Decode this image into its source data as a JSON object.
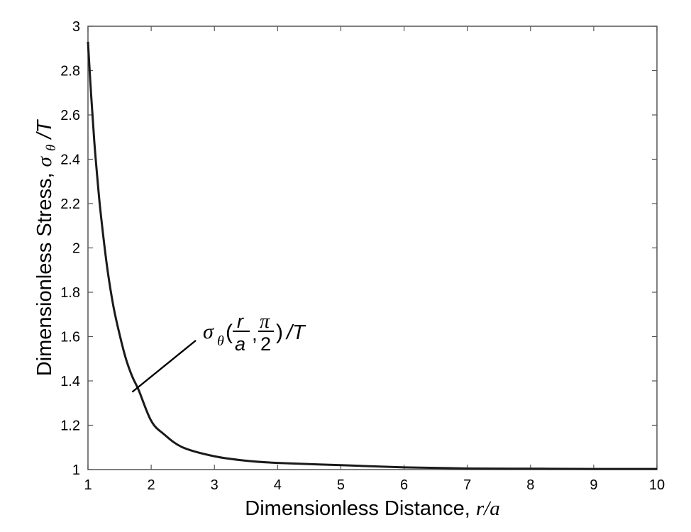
{
  "chart_data": {
    "type": "line",
    "xlabel": "Dimensionless Distance,",
    "xlabel_var": "r/a",
    "ylabel": "Dimensionless Stress,",
    "ylabel_sym": "σ",
    "ylabel_sub": "θ",
    "ylabel_tail": "/T",
    "xlim": [
      1,
      10
    ],
    "ylim": [
      1,
      3
    ],
    "xticks": [
      "1",
      "2",
      "3",
      "4",
      "5",
      "6",
      "7",
      "8",
      "9",
      "10"
    ],
    "yticks": [
      "1",
      "1.2",
      "1.4",
      "1.6",
      "1.8",
      "2",
      "2.2",
      "2.4",
      "2.6",
      "2.8",
      "3"
    ],
    "grid": false,
    "series": [
      {
        "x": [
          1.0,
          1.05,
          1.1,
          1.15,
          1.2,
          1.3,
          1.4,
          1.5,
          1.6,
          1.7,
          1.8,
          2.0,
          2.2,
          2.5,
          3.0,
          3.5,
          4.0,
          5.0,
          6.0,
          7.0,
          8.0,
          9.0,
          10.0
        ],
        "y": [
          2.93,
          2.69,
          2.48,
          2.31,
          2.16,
          1.92,
          1.74,
          1.61,
          1.5,
          1.42,
          1.36,
          1.22,
          1.16,
          1.1,
          1.06,
          1.04,
          1.03,
          1.02,
          1.01,
          1.005,
          1.004,
          1.003,
          1.003
        ],
        "color": "#1a1a1a"
      }
    ],
    "annotation": {
      "sigma": "σ",
      "sub": "θ",
      "open": "(",
      "frac1_num": "r",
      "frac1_den": "a",
      "comma": ",",
      "frac2_num": "π",
      "frac2_den": "2",
      "close": ")",
      "tail": "/T",
      "pointer_at": {
        "x": 1.7,
        "y": 1.35
      }
    }
  }
}
